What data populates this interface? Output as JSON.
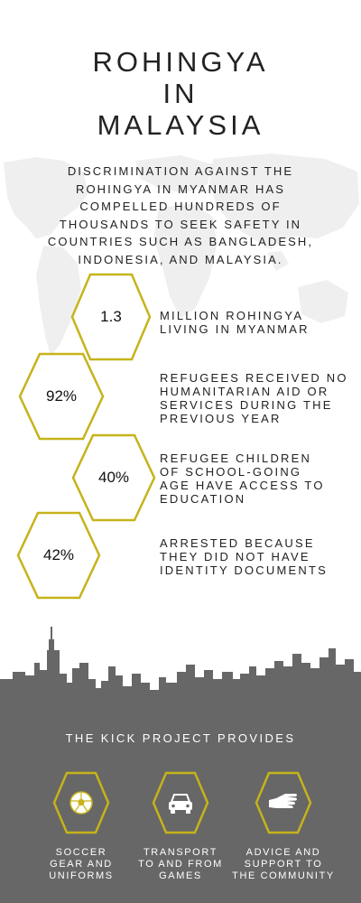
{
  "title": {
    "line1": "ROHINGYA",
    "line2": "IN",
    "line3": "MALAYSIA"
  },
  "intro": {
    "line1": "DISCRIMINATION AGAINST THE",
    "line2": "ROHINGYA IN MYANMAR HAS",
    "line3": "COMPELLED HUNDREDS OF",
    "line4": "THOUSANDS TO SEEK SAFETY IN",
    "line5": "COUNTRIES SUCH AS BANGLADESH,",
    "line6": "INDONESIA, AND MALAYSIA."
  },
  "stats": [
    {
      "value": "1.3",
      "label": "MILLION ROHINGYA\nLIVING IN MYANMAR"
    },
    {
      "value": "92%",
      "label": "REFUGEES RECEIVED NO\nHUMANITARIAN AID OR\nSERVICES DURING THE\nPREVIOUS YEAR"
    },
    {
      "value": "40%",
      "label": "REFUGEE CHILDREN\nOF SCHOOL-GOING\nAGE HAVE ACCESS TO\nEDUCATION"
    },
    {
      "value": "42%",
      "label": "ARRESTED BECAUSE\nTHEY DID NOT HAVE\nIDENTITY DOCUMENTS"
    }
  ],
  "provides": {
    "title": "THE KICK PROJECT PROVIDES",
    "items": [
      {
        "icon": "soccer-ball-icon",
        "label": "SOCCER\nGEAR AND\nUNIFORMS"
      },
      {
        "icon": "car-icon",
        "label": "TRANSPORT\nTO AND FROM\nGAMES"
      },
      {
        "icon": "helping-hand-icon",
        "label": "ADVICE AND\nSUPPORT TO\nTHE COMMUNITY"
      }
    ]
  },
  "colors": {
    "accent_gold": "#c6b31a",
    "skyline_gray": "#676767",
    "map_gray": "#f0f0f0",
    "text_dark": "#222222"
  }
}
